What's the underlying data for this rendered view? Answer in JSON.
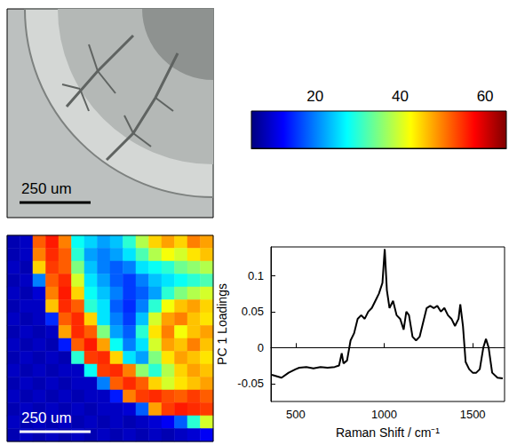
{
  "optical_image": {
    "scale_bar": "250 um"
  },
  "chart_data": [
    {
      "type": "heatmap",
      "scale_bar": "250 um",
      "colorbar": {
        "range": [
          5,
          65
        ],
        "ticks": [
          20,
          40,
          60
        ]
      },
      "cells": [
        [
          8,
          9,
          52,
          56,
          50,
          28,
          25,
          22,
          24,
          30,
          38,
          45,
          48,
          45,
          50,
          48
        ],
        [
          8,
          9,
          50,
          55,
          52,
          30,
          22,
          20,
          22,
          26,
          32,
          38,
          42,
          40,
          44,
          46
        ],
        [
          9,
          8,
          45,
          54,
          52,
          35,
          24,
          20,
          18,
          20,
          26,
          28,
          30,
          34,
          36,
          38
        ],
        [
          8,
          9,
          20,
          52,
          55,
          40,
          26,
          22,
          18,
          16,
          20,
          24,
          26,
          28,
          30,
          32
        ],
        [
          9,
          8,
          10,
          50,
          56,
          45,
          28,
          24,
          20,
          16,
          18,
          22,
          30,
          35,
          38,
          40
        ],
        [
          8,
          9,
          9,
          46,
          55,
          52,
          30,
          26,
          18,
          15,
          20,
          30,
          42,
          46,
          48,
          45
        ],
        [
          9,
          8,
          9,
          15,
          52,
          55,
          45,
          26,
          20,
          16,
          24,
          40,
          48,
          50,
          46,
          44
        ],
        [
          8,
          9,
          8,
          9,
          48,
          55,
          52,
          35,
          22,
          18,
          30,
          44,
          50,
          42,
          46,
          48
        ],
        [
          9,
          8,
          9,
          8,
          14,
          52,
          56,
          48,
          28,
          20,
          26,
          40,
          48,
          46,
          50,
          46
        ],
        [
          8,
          9,
          8,
          9,
          8,
          30,
          54,
          55,
          45,
          26,
          22,
          35,
          44,
          48,
          46,
          44
        ],
        [
          9,
          8,
          9,
          8,
          9,
          9,
          28,
          54,
          55,
          50,
          36,
          30,
          38,
          45,
          48,
          46
        ],
        [
          8,
          9,
          8,
          9,
          8,
          9,
          9,
          20,
          52,
          55,
          52,
          45,
          40,
          44,
          46,
          48
        ],
        [
          9,
          8,
          9,
          8,
          9,
          8,
          9,
          9,
          14,
          50,
          54,
          55,
          53,
          52,
          54,
          52
        ],
        [
          8,
          9,
          8,
          9,
          8,
          9,
          8,
          9,
          9,
          10,
          18,
          48,
          54,
          56,
          55,
          54
        ],
        [
          9,
          8,
          9,
          8,
          9,
          8,
          9,
          8,
          9,
          8,
          9,
          10,
          12,
          18,
          30,
          40
        ],
        [
          8,
          9,
          8,
          9,
          8,
          9,
          8,
          9,
          8,
          9,
          8,
          9,
          8,
          9,
          10,
          12
        ]
      ]
    },
    {
      "type": "line",
      "xlabel": "Raman Shift / cm⁻¹",
      "ylabel": "PC 1 Loadings",
      "color": "#000000",
      "xlim": [
        360,
        1680
      ],
      "xticks": [
        500,
        1000,
        1500
      ],
      "ylim": [
        -0.075,
        0.14
      ],
      "yticks": [
        -0.05,
        0,
        0.05,
        0.1
      ],
      "x": [
        365,
        420,
        460,
        500,
        520,
        560,
        600,
        640,
        680,
        720,
        745,
        760,
        770,
        790,
        810,
        830,
        850,
        870,
        890,
        910,
        930,
        950,
        970,
        990,
        1003,
        1015,
        1030,
        1050,
        1070,
        1090,
        1110,
        1125,
        1140,
        1160,
        1180,
        1200,
        1220,
        1240,
        1260,
        1280,
        1300,
        1320,
        1340,
        1360,
        1380,
        1400,
        1420,
        1430,
        1445,
        1460,
        1480,
        1500,
        1520,
        1540,
        1560,
        1575,
        1590,
        1610,
        1640,
        1670
      ],
      "values": [
        -0.038,
        -0.042,
        -0.035,
        -0.03,
        -0.028,
        -0.027,
        -0.029,
        -0.027,
        -0.028,
        -0.027,
        -0.025,
        -0.008,
        -0.022,
        -0.018,
        0.01,
        0.02,
        0.04,
        0.045,
        0.04,
        0.05,
        0.055,
        0.065,
        0.075,
        0.09,
        0.137,
        0.08,
        0.055,
        0.065,
        0.045,
        0.04,
        0.025,
        0.05,
        0.045,
        0.015,
        0.01,
        0.015,
        0.035,
        0.055,
        0.058,
        0.055,
        0.058,
        0.05,
        0.055,
        0.045,
        0.04,
        0.03,
        0.04,
        0.06,
        0.03,
        -0.02,
        -0.03,
        -0.035,
        -0.035,
        -0.03,
        0,
        0.012,
        0,
        -0.035,
        -0.042,
        -0.043
      ]
    }
  ]
}
